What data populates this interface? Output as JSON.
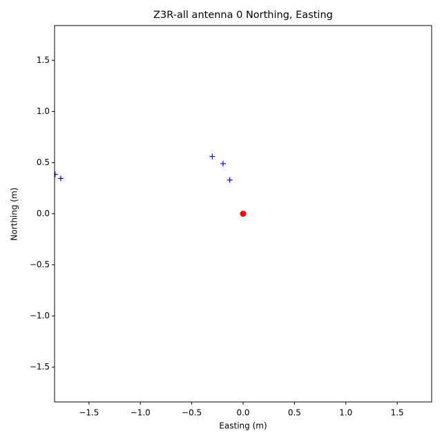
{
  "chart_data": {
    "type": "scatter",
    "title": "Z3R-all antenna 0 Northing, Easting",
    "x_label": "Easting (m)",
    "y_label": "Northing (m)",
    "series": [
      {
        "color": "#0000ff",
        "marker": "plus",
        "x": [
          -0.3,
          -0.195,
          -0.13,
          -1.775,
          -1.83
        ],
        "values": [
          0.56,
          0.49,
          0.33,
          0.345,
          0.385
        ]
      },
      {
        "color": "#ff0000",
        "marker": "circle",
        "x": [
          0
        ],
        "values": [
          0
        ]
      }
    ],
    "xlim": [
      -1.835,
      1.835
    ],
    "ylim": [
      -1.84,
      1.84
    ],
    "xticks": [
      {
        "value": -1.5,
        "label": "−1.5"
      },
      {
        "value": -1.0,
        "label": "−1.0"
      },
      {
        "value": -0.5,
        "label": "−0.5"
      },
      {
        "value": 0,
        "label": "0.0"
      },
      0.5,
      {
        "value": 1.0,
        "label": "1.0"
      },
      1.5
    ],
    "yticks": [
      {
        "value": -1.5,
        "label": "−1.5"
      },
      {
        "value": -1.0,
        "label": "−1.0"
      },
      {
        "value": -0.5,
        "label": "−0.5"
      },
      {
        "value": 0,
        "label": "0.0"
      },
      0.5,
      {
        "value": 1.0,
        "label": "1.0"
      },
      1.5
    ],
    "grid": false
  }
}
